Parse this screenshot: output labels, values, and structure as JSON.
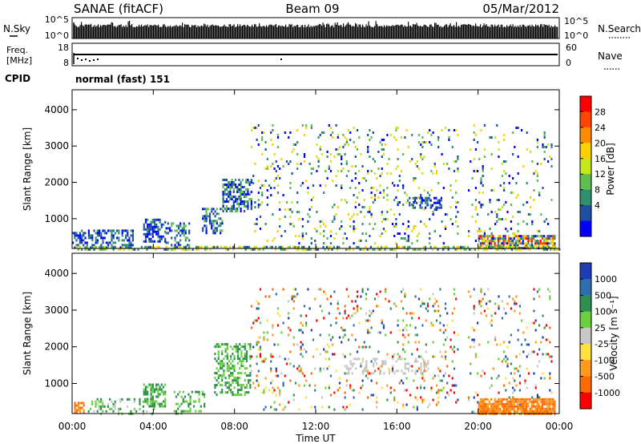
{
  "header": {
    "station": "SANAE (fitACF)",
    "beam": "Beam 09",
    "date": "05/Mar/2012"
  },
  "noise_panel": {
    "left_label": "N.Sky",
    "left_ticks": [
      "10^5",
      "10^0"
    ],
    "right_label": "N.Search",
    "right_ticks": [
      "10^5",
      "10^0"
    ]
  },
  "freq_panel": {
    "left_label_line1": "Freq.",
    "left_label_line2": "[MHz]",
    "left_ticks": [
      "18",
      "8"
    ],
    "right_label": "Nave",
    "right_ticks": [
      "60",
      "0"
    ],
    "cpid_label": "CPID",
    "cpid_text": "normal (fast) 151"
  },
  "colorbars": {
    "power": {
      "label": "Power [dB]",
      "ticks": [
        "28",
        "24",
        "20",
        "16",
        "12",
        "8",
        "4"
      ],
      "colors": [
        "#ff0000",
        "#ff4500",
        "#ff8c00",
        "#ffd000",
        "#c8e61e",
        "#5fbe50",
        "#2f8f6f",
        "#1e4fa0",
        "#0000ff"
      ]
    },
    "velocity": {
      "label": "Velocity [m s⁻¹]",
      "ticks": [
        "1000",
        "500",
        "100",
        "25",
        "-25",
        "-100",
        "-500",
        "-1000"
      ],
      "colors": [
        "#1e3cb4",
        "#2f6fb0",
        "#2f8f4f",
        "#6ad040",
        "#c8c8c8",
        "#ffe040",
        "#ff9a1e",
        "#ff6a00",
        "#ff0000"
      ]
    }
  },
  "chart_data": [
    {
      "type": "heatmap",
      "name": "power",
      "ylabel": "Slant Range [km]",
      "yticks": [
        "4000",
        "3000",
        "2000",
        "1000"
      ],
      "ylim": [
        180,
        4550
      ],
      "x_ticks": [
        "00:00",
        "04:00",
        "08:00",
        "12:00",
        "16:00",
        "20:00",
        "00:00"
      ],
      "xlim_hours": [
        0,
        24
      ],
      "scatter_regions": [
        {
          "t0": 0.0,
          "t1": 3.0,
          "r0": 180,
          "r1": 700,
          "density": 0.5,
          "cmin": 6,
          "cmax": 8
        },
        {
          "t0": 3.5,
          "t1": 4.6,
          "r0": 400,
          "r1": 1000,
          "density": 0.6,
          "cmin": 6,
          "cmax": 8
        },
        {
          "t0": 4.6,
          "t1": 5.8,
          "r0": 180,
          "r1": 900,
          "density": 0.35,
          "cmin": 5,
          "cmax": 8
        },
        {
          "t0": 6.4,
          "t1": 7.4,
          "r0": 600,
          "r1": 1300,
          "density": 0.55,
          "cmin": 5,
          "cmax": 8
        },
        {
          "t0": 7.4,
          "t1": 8.8,
          "r0": 1200,
          "r1": 2100,
          "density": 0.6,
          "cmin": 5,
          "cmax": 8
        },
        {
          "t0": 8.8,
          "t1": 19.0,
          "r0": 300,
          "r1": 3600,
          "density": 0.09,
          "cmin": 3,
          "cmax": 8
        },
        {
          "t0": 16.5,
          "t1": 18.2,
          "r0": 1300,
          "r1": 1600,
          "density": 0.5,
          "cmin": 6,
          "cmax": 8
        },
        {
          "t0": 19.5,
          "t1": 23.6,
          "r0": 250,
          "r1": 3600,
          "density": 0.07,
          "cmin": 3,
          "cmax": 8
        },
        {
          "t0": 20.0,
          "t1": 23.8,
          "r0": 180,
          "r1": 550,
          "density": 0.8,
          "cmin": 0,
          "cmax": 8
        },
        {
          "t0": 0.0,
          "t1": 24.0,
          "r0": 180,
          "r1": 250,
          "density": 0.5,
          "cmin": 3,
          "cmax": 7
        }
      ]
    },
    {
      "type": "heatmap",
      "name": "velocity",
      "ylabel": "Slant Range [km]",
      "yticks": [
        "4000",
        "3000",
        "2000",
        "1000"
      ],
      "ylim": [
        180,
        4550
      ],
      "x_ticks": [
        "00:00",
        "04:00",
        "08:00",
        "12:00",
        "16:00",
        "20:00",
        "00:00"
      ],
      "xlabel": "Time UT",
      "xlim_hours": [
        0,
        24
      ],
      "scatter_regions": [
        {
          "t0": 0.1,
          "t1": 0.6,
          "r0": 180,
          "r1": 500,
          "density": 0.8,
          "cmin": 6,
          "cmax": 7
        },
        {
          "t0": 0.6,
          "t1": 4.0,
          "r0": 180,
          "r1": 600,
          "density": 0.25,
          "cmin": 2,
          "cmax": 4
        },
        {
          "t0": 3.5,
          "t1": 4.6,
          "r0": 400,
          "r1": 1000,
          "density": 0.6,
          "cmin": 2,
          "cmax": 3
        },
        {
          "t0": 5.0,
          "t1": 6.5,
          "r0": 180,
          "r1": 800,
          "density": 0.35,
          "cmin": 2,
          "cmax": 3
        },
        {
          "t0": 7.0,
          "t1": 8.8,
          "r0": 700,
          "r1": 2100,
          "density": 0.45,
          "cmin": 2,
          "cmax": 3
        },
        {
          "t0": 8.8,
          "t1": 19.0,
          "r0": 300,
          "r1": 3600,
          "density": 0.09,
          "cmin": 0,
          "cmax": 8
        },
        {
          "t0": 13.5,
          "t1": 17.5,
          "r0": 1300,
          "r1": 1700,
          "density": 0.25,
          "cmin": 4,
          "cmax": 4
        },
        {
          "t0": 19.5,
          "t1": 23.6,
          "r0": 250,
          "r1": 3600,
          "density": 0.08,
          "cmin": 0,
          "cmax": 8
        },
        {
          "t0": 20.0,
          "t1": 23.8,
          "r0": 180,
          "r1": 600,
          "density": 0.85,
          "cmin": 6,
          "cmax": 7
        }
      ]
    }
  ]
}
